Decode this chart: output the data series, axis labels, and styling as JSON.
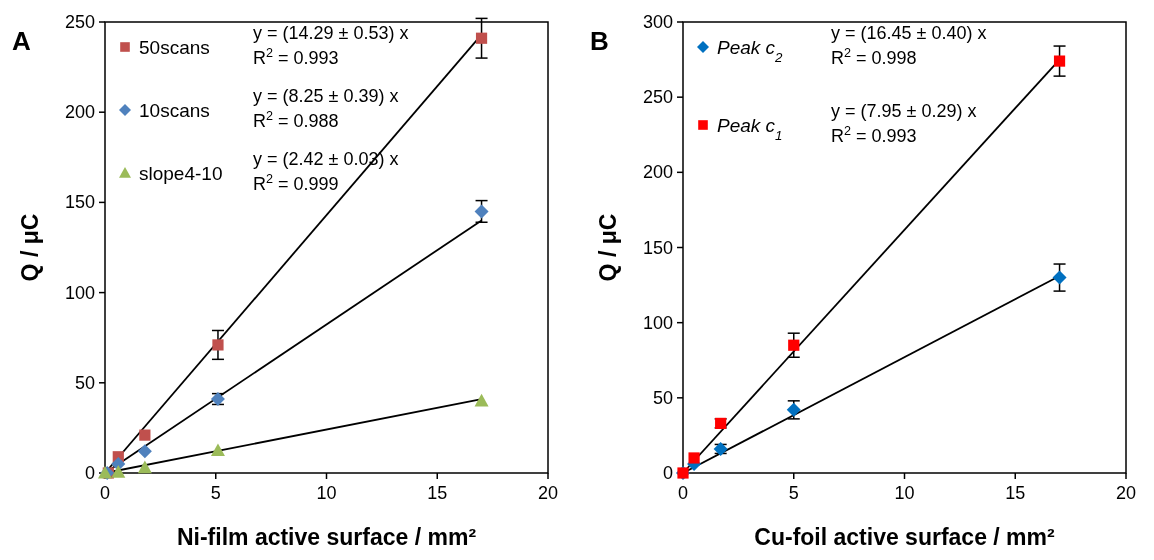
{
  "chart_data": [
    {
      "type": "scatter",
      "title": "A",
      "xlabel": "Ni-film active surface / mm²",
      "ylabel": "Q / μC",
      "xlim": [
        0,
        20
      ],
      "xticks": [
        0,
        5,
        10,
        15,
        20
      ],
      "ylim": [
        0,
        250
      ],
      "yticks": [
        0,
        50,
        100,
        150,
        200,
        250
      ],
      "grid": false,
      "legend": "top left",
      "series": [
        {
          "name": "50scans",
          "color": "#c0504d",
          "marker": "square",
          "x": [
            0.15,
            0.6,
            1.8,
            5.1,
            17
          ],
          "values": [
            0,
            9,
            21,
            71,
            241
          ],
          "errors": [
            null,
            null,
            null,
            8,
            11
          ]
        },
        {
          "name": "10scans",
          "color": "#4f81bd",
          "marker": "diamond",
          "x": [
            0.1,
            0.6,
            1.8,
            5.1,
            17
          ],
          "values": [
            0,
            5,
            12,
            41,
            145
          ],
          "errors": [
            null,
            null,
            null,
            3,
            6
          ]
        },
        {
          "name": "slope4-10",
          "color": "#9bbb59",
          "marker": "triangle",
          "x": [
            0,
            0.6,
            1.8,
            5.1,
            17
          ],
          "values": [
            0,
            0.5,
            3,
            12.5,
            40
          ]
        },
        {
          "type": "line",
          "color": "#000000",
          "x": [
            0,
            17
          ],
          "values": [
            0,
            243
          ]
        },
        {
          "type": "line",
          "color": "#000000",
          "x": [
            0,
            17
          ],
          "values": [
            0,
            140
          ]
        },
        {
          "type": "line",
          "color": "#000000",
          "x": [
            0,
            17
          ],
          "values": [
            0,
            41
          ]
        }
      ],
      "annotations": [
        "y = (14.29 ± 0.53) x",
        "R$^{2}$ = 0.993",
        "y = (8.25 ± 0.39) x",
        "R$^{2}$ = 0.988",
        "y = (2.42 ± 0.03) x",
        "R$^{2}$ = 0.999"
      ]
    },
    {
      "type": "scatter",
      "title": "B",
      "xlabel": "Cu-foil active surface / mm²",
      "ylabel": "Q / μC",
      "xlim": [
        0,
        20
      ],
      "xticks": [
        0,
        5,
        10,
        15,
        20
      ],
      "ylim": [
        0,
        300
      ],
      "yticks": [
        0,
        50,
        100,
        150,
        200,
        250,
        300
      ],
      "grid": false,
      "legend": "top left",
      "series": [
        {
          "name": "Peak c$_{2}$",
          "color": "#0070c0",
          "marker": "diamond",
          "x": [
            0,
            0.5,
            1.7,
            5,
            17
          ],
          "values": [
            0,
            6,
            16,
            42,
            130
          ],
          "errors": [
            null,
            null,
            3,
            6,
            9
          ]
        },
        {
          "name": "Peak c$_{1}$",
          "color": "#ff0000",
          "marker": "square",
          "x": [
            0,
            0.5,
            1.7,
            5,
            17
          ],
          "values": [
            0,
            10,
            33,
            85,
            274
          ],
          "errors": [
            null,
            null,
            3,
            8,
            10
          ]
        },
        {
          "type": "line",
          "color": "#000000",
          "x": [
            0,
            17
          ],
          "values": [
            0,
            275
          ]
        },
        {
          "type": "line",
          "color": "#000000",
          "x": [
            0,
            17
          ],
          "values": [
            0,
            131
          ]
        }
      ],
      "annotations": [
        "y = (16.45 ± 0.40) x",
        "R$^{2}$ = 0.998",
        "y = (7.95 ± 0.29) x",
        "R$^{2}$ = 0.993"
      ]
    }
  ]
}
